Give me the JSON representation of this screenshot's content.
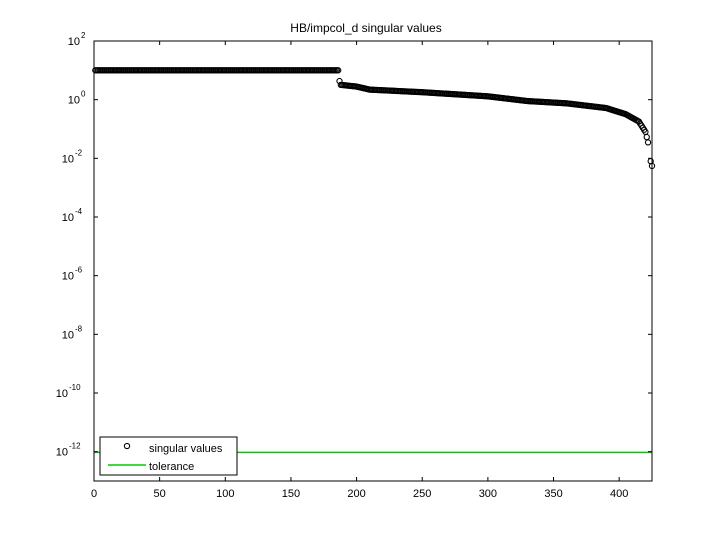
{
  "chart_data": {
    "type": "scatter",
    "title": "HB/impcol_d singular values",
    "xlabel": "",
    "ylabel": "",
    "xlim": [
      0,
      425
    ],
    "ylim_log10": [
      -13,
      2
    ],
    "y_scale": "log",
    "grid": false,
    "x_ticks": [
      0,
      50,
      100,
      150,
      200,
      250,
      300,
      350,
      400
    ],
    "x_tick_labels": [
      "0",
      "50",
      "100",
      "150",
      "200",
      "250",
      "300",
      "350",
      "400"
    ],
    "y_ticks_exp": [
      2,
      0,
      -2,
      -4,
      -6,
      -8,
      -10,
      -12
    ],
    "y_tick_base": "10",
    "y_tick_exponents": [
      "2",
      "0",
      "-2",
      "-4",
      "-6",
      "-8",
      "-10",
      "-12"
    ],
    "series": [
      {
        "name": "singular values",
        "marker": "circle",
        "color": "#000000",
        "n": 425,
        "profile": [
          [
            1,
            10
          ],
          [
            186,
            10
          ],
          [
            187,
            4.3
          ],
          [
            188,
            3.2
          ],
          [
            200,
            2.8
          ],
          [
            210,
            2.2
          ],
          [
            250,
            1.8
          ],
          [
            300,
            1.3
          ],
          [
            330,
            0.9
          ],
          [
            360,
            0.75
          ],
          [
            390,
            0.52
          ],
          [
            405,
            0.32
          ],
          [
            415,
            0.18
          ],
          [
            420,
            0.08
          ],
          [
            422,
            0.035
          ]
        ],
        "extra_points": [
          [
            424,
            0.008
          ],
          [
            425,
            0.0055
          ]
        ]
      },
      {
        "name": "tolerance",
        "type": "line",
        "color": "#00cc00",
        "value": 9.5e-13
      }
    ],
    "legend": {
      "position": "bottom-left",
      "entries": [
        "singular values",
        "tolerance"
      ]
    }
  }
}
